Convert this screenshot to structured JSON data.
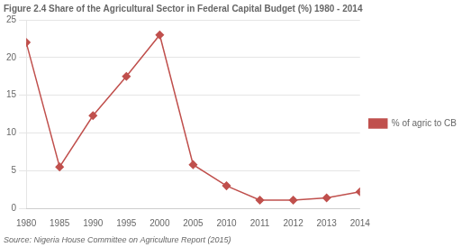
{
  "chart_data": {
    "type": "line",
    "title": "Figure 2.4 Share of the Agricultural Sector in Federal Capital Budget (%) 1980 - 2014",
    "annotations": [
      "Source: Nigeria House Committee on Agriculture Report (2015)"
    ],
    "categories": [
      "1980",
      "1985",
      "1990",
      "1995",
      "2000",
      "2005",
      "2010",
      "2011",
      "2012",
      "2013",
      "2014"
    ],
    "series": [
      {
        "name": "% of agric to CB",
        "color": "#c0504d",
        "marker": "diamond",
        "values": [
          22,
          5.5,
          12.3,
          17.5,
          23,
          5.8,
          3.0,
          1.1,
          1.1,
          1.4,
          2.2
        ]
      }
    ],
    "ylim": [
      0,
      25
    ],
    "yticks": [
      0,
      5,
      10,
      15,
      20,
      25
    ],
    "grid": true,
    "legend": "right"
  }
}
